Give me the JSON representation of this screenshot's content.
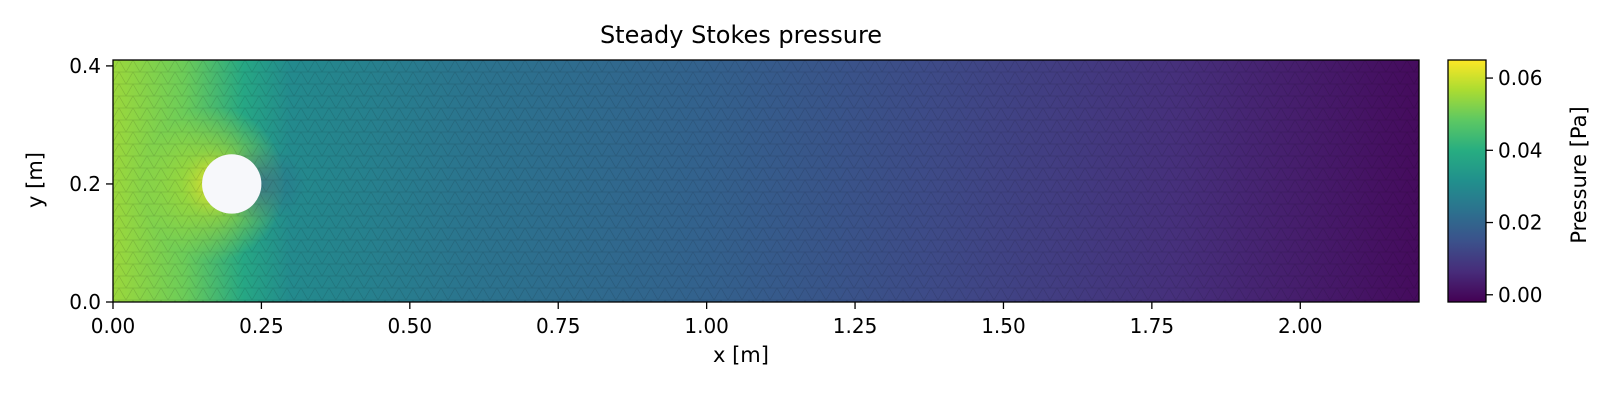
{
  "chart_data": {
    "type": "heatmap",
    "title": "Steady Stokes pressure",
    "xlabel": "x [m]",
    "ylabel": "y [m]",
    "xlim": [
      0.0,
      2.2
    ],
    "ylim": [
      0.0,
      0.41
    ],
    "xticks": [
      "0.00",
      "0.25",
      "0.50",
      "0.75",
      "1.00",
      "1.25",
      "1.50",
      "1.75",
      "2.00"
    ],
    "yticks": [
      "0.0",
      "0.2",
      "0.4"
    ],
    "colorscale": "viridis",
    "colorbar": {
      "label": "Pressure [Pa]",
      "range": [
        -0.002,
        0.065
      ],
      "ticks": [
        "0.00",
        "0.02",
        "0.04",
        "0.06"
      ]
    },
    "obstacle": {
      "type": "circle",
      "center_x": 0.2,
      "center_y": 0.2,
      "radius": 0.05
    },
    "field_description_samples": {
      "inlet_pressure": 0.055,
      "max_pressure_near_obstacle_front": 0.064,
      "outlet_pressure": 0.0
    },
    "grid": false,
    "mesh_overlay": true
  }
}
